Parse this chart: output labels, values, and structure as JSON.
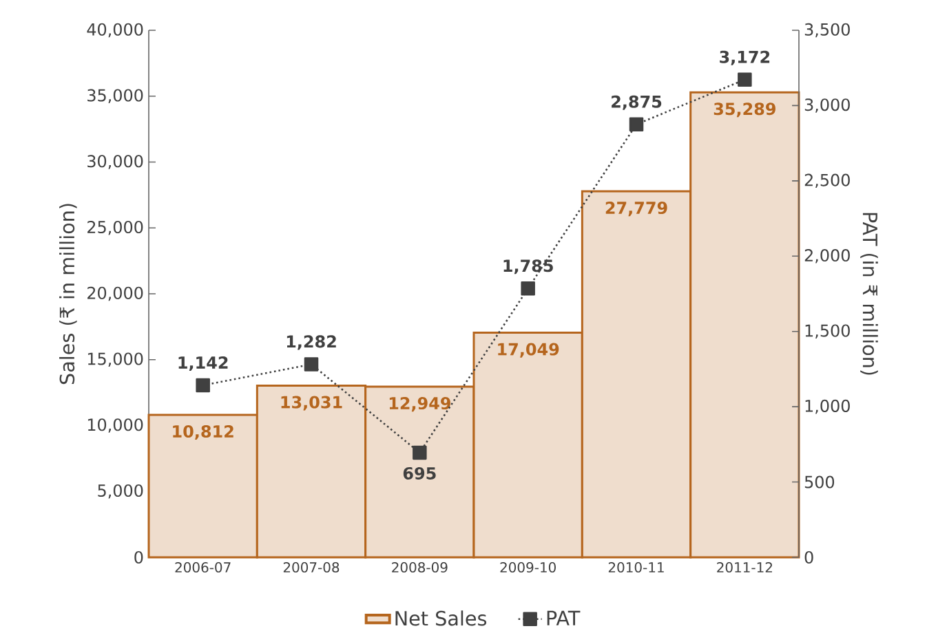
{
  "chart_data": {
    "type": "bar",
    "categories": [
      "2006-07",
      "2007-08",
      "2008-09",
      "2009-10",
      "2010-11",
      "2011-12"
    ],
    "ylabel": "Sales (₹ in million)",
    "y2label": "PAT (in ₹ million)",
    "ylim": [
      0,
      40000
    ],
    "yticks": [
      0,
      {
        "value": 5000,
        "label": "5,000"
      },
      {
        "value": 10000,
        "label": "10,000"
      },
      {
        "value": 15000,
        "label": "15,000"
      },
      {
        "value": 20000,
        "label": "20,000"
      },
      {
        "value": 25000,
        "label": "25,000"
      },
      {
        "value": 30000,
        "label": "30,000"
      },
      {
        "value": 35000,
        "label": "35,000"
      },
      {
        "value": 40000,
        "label": "40,000"
      }
    ],
    "y2lim": [
      0,
      3500
    ],
    "y2ticks": [
      0,
      500,
      {
        "value": 1000,
        "label": "1,000"
      },
      {
        "value": 1500,
        "label": "1,500"
      },
      {
        "value": 2000,
        "label": "2,000"
      },
      {
        "value": 2500,
        "label": "2,500"
      },
      {
        "value": 3000,
        "label": "3,000"
      },
      {
        "value": 3500,
        "label": "3,500"
      }
    ],
    "legend": "bottom",
    "marker": "square",
    "line_style": "dotted",
    "series": [
      {
        "name": "Net Sales",
        "color": "#efddcd",
        "values": [
          10812,
          13031,
          12949,
          17049,
          27779,
          35289
        ],
        "value_labels": [
          "10,812",
          "13,031",
          "12,949",
          "17,049",
          "27,779",
          "35,289"
        ]
      },
      {
        "name": "PAT",
        "type": "line",
        "axis": "y2",
        "color": "#404040",
        "values": [
          1142,
          1282,
          695,
          1785,
          2875,
          3172
        ],
        "value_labels": [
          "1,142",
          "1,282",
          "695",
          "1,785",
          "2,875",
          "3,172"
        ]
      }
    ]
  }
}
